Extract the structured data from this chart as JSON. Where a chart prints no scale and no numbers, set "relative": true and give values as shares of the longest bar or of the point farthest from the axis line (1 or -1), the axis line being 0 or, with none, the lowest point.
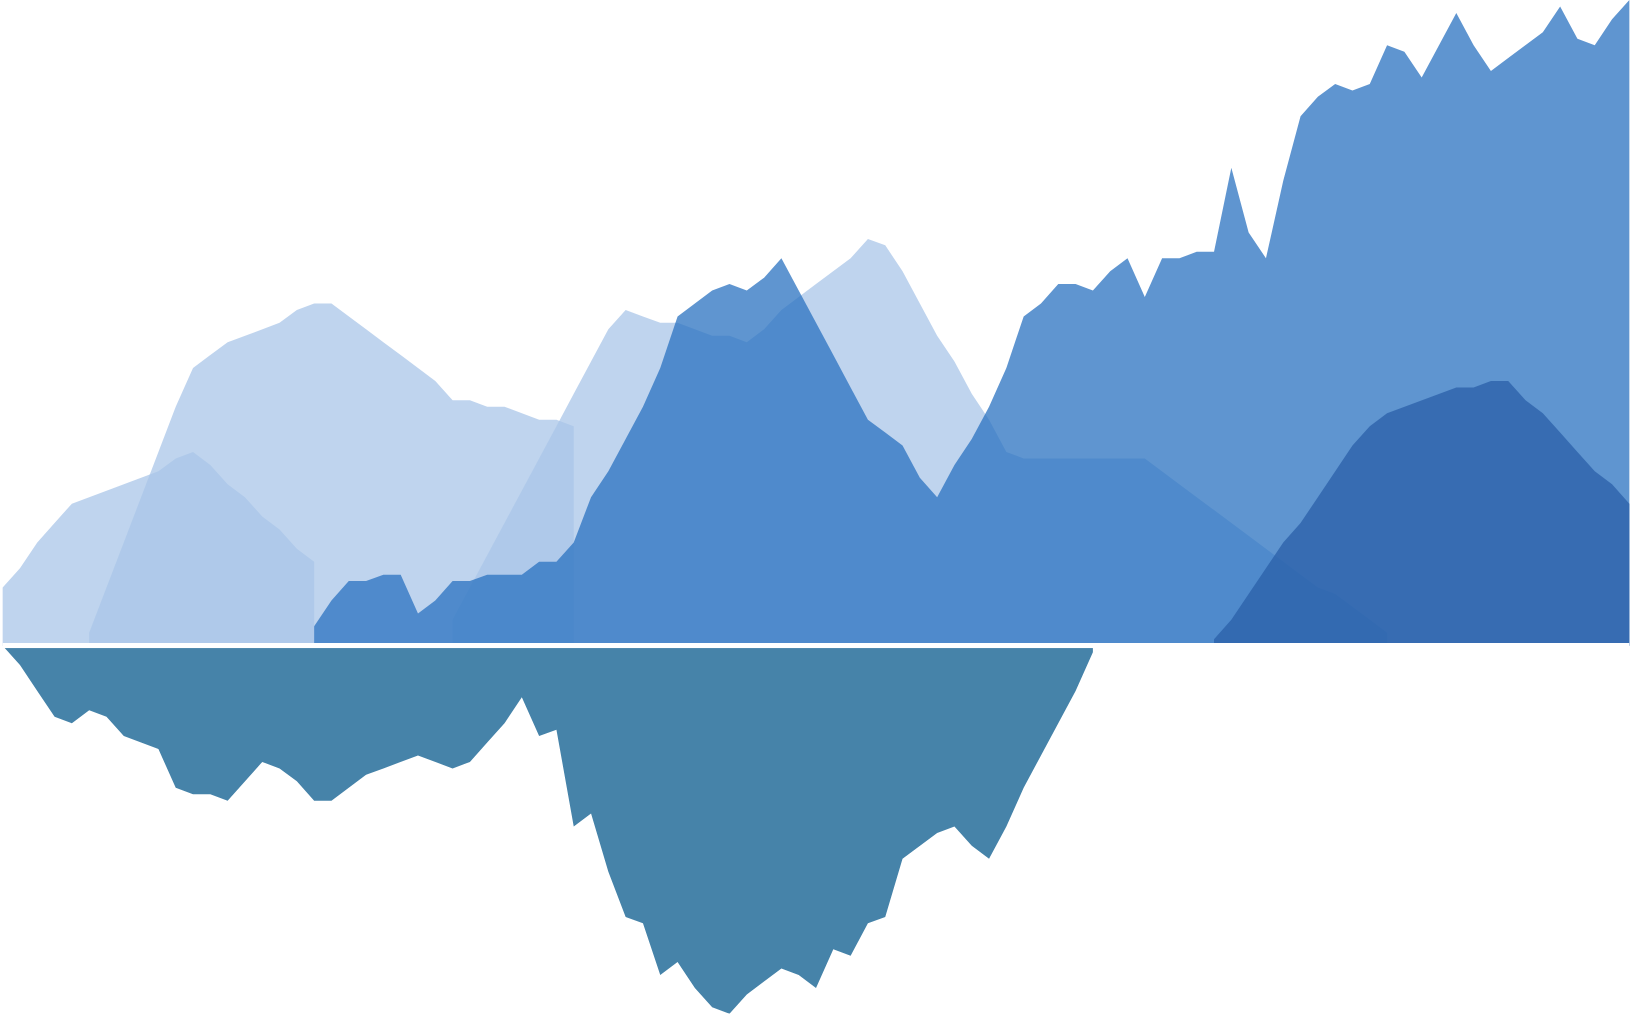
{
  "chart_data": {
    "type": "area",
    "relative": true,
    "categories": [
      null,
      null,
      null,
      null,
      null,
      null,
      null,
      null,
      null,
      null,
      null,
      null,
      null,
      null,
      null,
      null,
      null,
      null,
      null,
      null,
      null,
      null,
      null,
      null,
      null,
      null,
      null,
      null,
      null,
      null,
      null,
      null,
      null,
      null,
      null,
      null,
      null,
      null,
      null,
      null,
      null,
      null,
      null,
      null,
      null,
      null,
      null,
      null,
      null,
      null,
      null,
      null,
      null,
      null,
      null,
      null,
      null,
      null,
      null,
      null,
      null,
      null,
      null,
      null,
      null,
      null,
      null,
      null,
      null,
      null,
      null,
      null,
      null,
      null,
      null,
      null,
      null,
      null,
      null,
      null,
      null,
      null,
      null,
      null,
      null,
      null,
      null,
      null,
      null,
      null,
      null,
      null,
      null,
      null,
      null
    ],
    "series": [
      {
        "color": "#a9c6e8",
        "values": [
          0.09,
          0.12,
          0.16,
          0.19,
          0.22,
          0.23,
          0.24,
          0.25,
          0.26,
          0.27,
          0.29,
          0.3,
          0.28,
          0.25,
          0.23,
          0.2,
          0.18,
          0.15,
          0.13,
          null,
          null,
          null,
          null,
          null,
          null,
          null,
          null,
          null,
          null,
          null,
          null,
          null,
          null,
          null,
          null,
          null,
          null,
          null,
          null,
          null,
          null,
          null,
          null,
          null,
          null,
          null,
          null,
          null,
          null,
          null,
          null,
          null,
          null,
          null,
          null,
          null,
          null,
          null,
          null,
          null,
          null,
          null,
          null,
          null,
          null,
          null,
          null,
          null,
          null,
          null,
          null,
          null,
          null,
          null,
          null,
          null,
          null,
          null,
          null,
          null,
          null,
          null,
          null,
          null,
          null,
          null,
          null,
          null,
          null,
          null,
          null,
          null,
          null,
          null,
          null
        ]
      },
      {
        "color": "#a9c6e8",
        "values": [
          null,
          null,
          null,
          null,
          null,
          0.02,
          0.09,
          0.16,
          0.23,
          0.3,
          0.37,
          0.43,
          0.45,
          0.47,
          0.48,
          0.49,
          0.5,
          0.52,
          0.53,
          0.53,
          0.51,
          0.49,
          0.47,
          0.45,
          0.43,
          0.41,
          0.38,
          0.38,
          0.37,
          0.37,
          0.36,
          0.35,
          0.35,
          0.34,
          null,
          null,
          null,
          null,
          null,
          null,
          null,
          null,
          null,
          null,
          null,
          null,
          null,
          null,
          null,
          null,
          null,
          null,
          null,
          null,
          null,
          null,
          null,
          null,
          null,
          null,
          null,
          null,
          null,
          null,
          null,
          null,
          null,
          null,
          null,
          null,
          null,
          null,
          null,
          null,
          null,
          null,
          null,
          null,
          null,
          null,
          null,
          null,
          null,
          null,
          null,
          null,
          null,
          null,
          null,
          null,
          null,
          null,
          null,
          null,
          null
        ]
      },
      {
        "color": "#a9c6e8",
        "values": [
          null,
          null,
          null,
          null,
          null,
          null,
          null,
          null,
          null,
          null,
          null,
          null,
          null,
          null,
          null,
          null,
          null,
          null,
          null,
          null,
          null,
          null,
          null,
          null,
          null,
          null,
          0.04,
          0.09,
          0.14,
          0.19,
          0.24,
          0.29,
          0.34,
          0.39,
          0.44,
          0.49,
          0.52,
          0.51,
          0.5,
          0.5,
          0.49,
          0.48,
          0.48,
          0.47,
          0.49,
          0.52,
          0.54,
          0.56,
          0.58,
          0.6,
          0.63,
          0.62,
          0.58,
          0.53,
          0.48,
          0.44,
          0.39,
          0.35,
          0.3,
          0.29,
          0.29,
          0.29,
          0.29,
          0.29,
          0.29,
          0.29,
          0.29,
          0.27,
          0.25,
          0.23,
          0.21,
          0.19,
          0.17,
          0.15,
          0.13,
          0.11,
          0.09,
          0.08,
          0.06,
          0.04,
          0.02,
          null,
          null,
          null,
          null,
          null,
          null,
          null,
          null,
          null,
          null,
          null,
          null,
          null,
          null
        ]
      },
      {
        "color": "#2a72c0",
        "values": [
          null,
          null,
          null,
          null,
          null,
          null,
          null,
          null,
          null,
          null,
          null,
          null,
          null,
          null,
          null,
          null,
          null,
          null,
          0.03,
          0.07,
          0.1,
          0.1,
          0.11,
          0.11,
          0.05,
          0.07,
          0.1,
          0.1,
          0.11,
          0.11,
          0.11,
          0.13,
          0.13,
          0.16,
          0.23,
          0.27,
          0.32,
          0.37,
          0.43,
          0.51,
          0.53,
          0.55,
          0.56,
          0.55,
          0.57,
          0.6,
          0.55,
          0.5,
          0.45,
          0.4,
          0.35,
          0.33,
          0.31,
          0.26,
          0.23,
          0.28,
          0.32,
          0.37,
          0.43,
          0.51,
          0.53,
          0.56,
          0.56,
          0.55,
          0.58,
          0.6,
          0.54,
          0.6,
          0.6,
          0.61,
          0.61,
          0.74,
          0.64,
          0.6,
          0.72,
          0.82,
          0.85,
          0.87,
          0.86,
          0.87,
          0.93,
          0.92,
          0.88,
          0.93,
          0.98,
          0.93,
          0.89,
          0.91,
          0.93,
          0.95,
          0.99,
          0.94,
          0.93,
          0.97,
          1.0
        ]
      },
      {
        "color": "#2a5fa8",
        "values": [
          null,
          null,
          null,
          null,
          null,
          null,
          null,
          null,
          null,
          null,
          null,
          null,
          null,
          null,
          null,
          null,
          null,
          null,
          null,
          null,
          null,
          null,
          null,
          null,
          null,
          null,
          null,
          null,
          null,
          null,
          null,
          null,
          null,
          null,
          null,
          null,
          null,
          null,
          null,
          null,
          null,
          null,
          null,
          null,
          null,
          null,
          null,
          null,
          null,
          null,
          null,
          null,
          null,
          null,
          null,
          null,
          null,
          null,
          null,
          null,
          null,
          null,
          null,
          null,
          null,
          null,
          null,
          null,
          null,
          null,
          0.01,
          0.04,
          0.08,
          0.12,
          0.16,
          0.19,
          0.23,
          0.27,
          0.31,
          0.34,
          0.36,
          0.37,
          0.38,
          0.39,
          0.4,
          0.4,
          0.41,
          0.41,
          0.38,
          0.36,
          0.33,
          0.3,
          0.27,
          0.25,
          0.22
        ]
      },
      {
        "color": "#08598c",
        "values": [
          0,
          -0.03,
          -0.07,
          -0.11,
          -0.12,
          -0.1,
          -0.11,
          -0.14,
          -0.15,
          -0.16,
          -0.22,
          -0.23,
          -0.23,
          -0.24,
          -0.21,
          -0.18,
          -0.19,
          -0.21,
          -0.24,
          -0.24,
          -0.22,
          -0.2,
          -0.19,
          -0.18,
          -0.17,
          -0.18,
          -0.19,
          -0.18,
          -0.15,
          -0.12,
          -0.08,
          -0.14,
          -0.13,
          -0.28,
          -0.26,
          -0.35,
          -0.42,
          -0.43,
          -0.51,
          -0.49,
          -0.53,
          -0.56,
          -0.57,
          -0.54,
          -0.52,
          -0.5,
          -0.51,
          -0.53,
          -0.47,
          -0.48,
          -0.43,
          -0.42,
          -0.33,
          -0.31,
          -0.29,
          -0.28,
          -0.31,
          -0.33,
          -0.28,
          -0.22,
          -0.17,
          -0.12,
          -0.07,
          -0.01,
          null,
          null,
          null,
          null,
          null,
          null,
          null,
          null,
          null,
          null,
          null,
          null,
          null,
          null,
          null,
          null,
          null,
          null,
          null,
          null,
          null,
          null,
          null,
          null,
          null,
          null,
          null,
          null,
          null,
          null,
          null
        ]
      }
    ]
  }
}
